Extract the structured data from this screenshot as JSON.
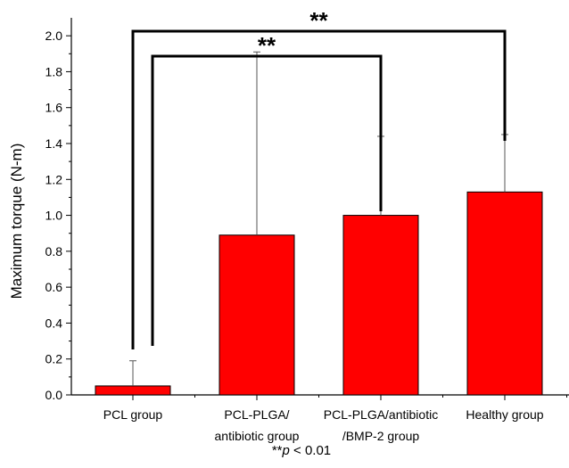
{
  "colors": {
    "bar": "#ff0000",
    "bar_stroke": "#000000",
    "axis": "#000000",
    "error": "#555555"
  },
  "chart_data": {
    "type": "bar",
    "title": "",
    "ylabel": "Maximum torque (N-m)",
    "xlabel": "",
    "ylim": [
      0,
      2.1
    ],
    "yticks": [
      "0.0",
      "0.2",
      "0.4",
      "0.6",
      "0.8",
      "1.0",
      "1.2",
      "1.4",
      "1.6",
      "1.8",
      "2.0"
    ],
    "categories": [
      [
        "PCL group"
      ],
      [
        "PCL-PLGA/",
        "antibiotic group"
      ],
      [
        "PCL-PLGA/antibiotic",
        "/BMP-2 group"
      ],
      [
        "Healthy group"
      ]
    ],
    "values": [
      0.05,
      0.89,
      1.0,
      1.13
    ],
    "error_upper": [
      0.19,
      1.91,
      1.44,
      1.45
    ],
    "significance": [
      {
        "from": 0,
        "to": 3,
        "label": "**"
      },
      {
        "from": 0,
        "to": 2,
        "label": "**"
      }
    ],
    "footnote": "**p < 0.01",
    "footnote_parts": {
      "stars": "**",
      "p": "p",
      "rest": " < 0.01"
    }
  }
}
